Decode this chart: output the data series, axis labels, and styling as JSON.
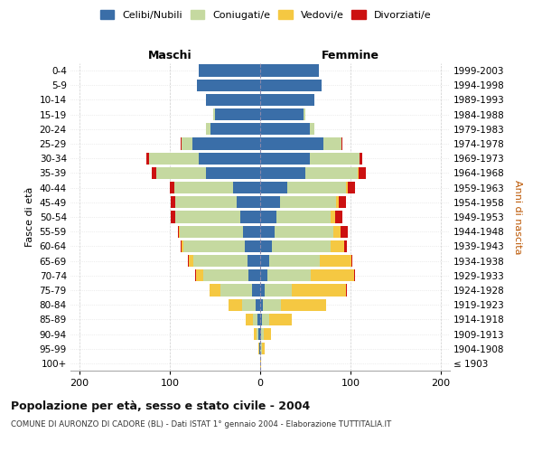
{
  "age_groups": [
    "100+",
    "95-99",
    "90-94",
    "85-89",
    "80-84",
    "75-79",
    "70-74",
    "65-69",
    "60-64",
    "55-59",
    "50-54",
    "45-49",
    "40-44",
    "35-39",
    "30-34",
    "25-29",
    "20-24",
    "15-19",
    "10-14",
    "5-9",
    "0-4"
  ],
  "birth_years": [
    "≤ 1903",
    "1904-1908",
    "1909-1913",
    "1914-1918",
    "1919-1923",
    "1924-1928",
    "1929-1933",
    "1934-1938",
    "1939-1943",
    "1944-1948",
    "1949-1953",
    "1954-1958",
    "1959-1963",
    "1964-1968",
    "1969-1973",
    "1974-1978",
    "1979-1983",
    "1984-1988",
    "1989-1993",
    "1994-1998",
    "1999-2003"
  ],
  "maschi": {
    "celibi": [
      0,
      1,
      2,
      3,
      5,
      9,
      13,
      14,
      17,
      19,
      22,
      26,
      30,
      60,
      68,
      75,
      55,
      50,
      60,
      70,
      68
    ],
    "coniugati": [
      0,
      0,
      2,
      5,
      15,
      35,
      50,
      60,
      68,
      70,
      72,
      68,
      65,
      55,
      55,
      12,
      5,
      2,
      0,
      0,
      0
    ],
    "vedovi": [
      0,
      1,
      3,
      8,
      15,
      12,
      8,
      5,
      2,
      1,
      0,
      0,
      0,
      0,
      0,
      0,
      0,
      0,
      0,
      0,
      0
    ],
    "divorziati": [
      0,
      0,
      0,
      0,
      0,
      0,
      1,
      1,
      1,
      1,
      5,
      5,
      5,
      5,
      3,
      1,
      0,
      0,
      0,
      0,
      0
    ]
  },
  "femmine": {
    "nubili": [
      0,
      0,
      1,
      2,
      3,
      5,
      8,
      10,
      13,
      16,
      18,
      22,
      30,
      50,
      55,
      70,
      55,
      48,
      60,
      68,
      65
    ],
    "coniugate": [
      0,
      2,
      3,
      8,
      20,
      30,
      48,
      56,
      65,
      65,
      60,
      62,
      65,
      58,
      55,
      20,
      5,
      2,
      0,
      0,
      0
    ],
    "vedove": [
      1,
      3,
      8,
      25,
      50,
      60,
      48,
      35,
      15,
      8,
      5,
      3,
      2,
      1,
      0,
      0,
      0,
      0,
      0,
      0,
      0
    ],
    "divorziate": [
      0,
      0,
      0,
      0,
      0,
      1,
      1,
      1,
      3,
      8,
      8,
      8,
      8,
      8,
      3,
      1,
      0,
      0,
      0,
      0,
      0
    ]
  },
  "colors": {
    "celibi": "#3a6ea8",
    "coniugati": "#c5d9a0",
    "vedovi": "#f5c842",
    "divorziati": "#cc1111"
  },
  "xlim": 210,
  "title": "Popolazione per età, sesso e stato civile - 2004",
  "subtitle": "COMUNE DI AURONZO DI CADORE (BL) - Dati ISTAT 1° gennaio 2004 - Elaborazione TUTTITALIA.IT",
  "ylabel_left": "Fasce di età",
  "ylabel_right": "Anni di nascita",
  "xlabel_left": "Maschi",
  "xlabel_right": "Femmine"
}
